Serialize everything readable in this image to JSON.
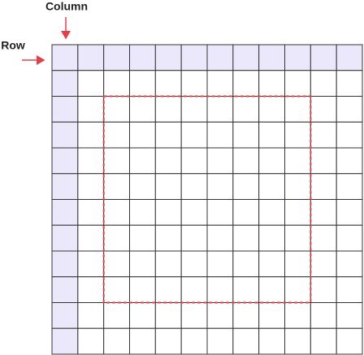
{
  "labels": {
    "column": "Column",
    "row": "Row"
  }
}
